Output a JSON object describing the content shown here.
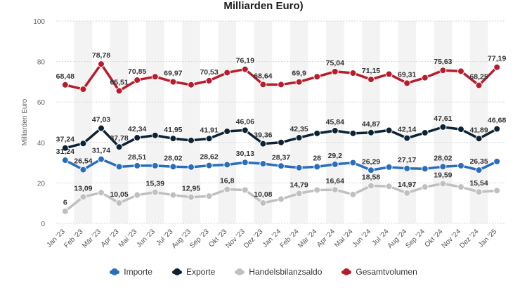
{
  "title": "Milliarden Euro)",
  "chart_data": {
    "type": "line",
    "ylabel": "Milliarden Euro",
    "ylim": [
      0,
      100
    ],
    "yticks": [
      0,
      20,
      40,
      60,
      80,
      100
    ],
    "grid": true,
    "legend_position": "bottom",
    "categories": [
      "Jan '23",
      "Feb '23",
      "Mär '23",
      "Apr '23",
      "Mai '23",
      "Jun '23",
      "Jul '23",
      "Aug '23",
      "Sep '23",
      "Okt '23",
      "Nov '23",
      "Dez '23",
      "Jan '24",
      "Feb '24",
      "Mär '24",
      "Apr '24",
      "Mai '24",
      "Jun '24",
      "Jul '24",
      "Aug '24",
      "Sep '24",
      "Okt '24",
      "Nov '24",
      "Dez '24",
      "Jan '25"
    ],
    "series": [
      {
        "name": "Importe",
        "color": "#2a6ebb",
        "values": [
          31.24,
          26.54,
          31.74,
          28.0,
          28.51,
          28.5,
          28.02,
          27.8,
          28.62,
          29.0,
          30.13,
          29.5,
          28.37,
          27.5,
          28.0,
          29.2,
          30.0,
          26.29,
          27.8,
          27.17,
          27.0,
          28.02,
          28.5,
          26.35,
          30.6
        ],
        "labels": {
          "0": "31,24",
          "1": "26,54",
          "2": "31,74",
          "4": "28,51",
          "6": "28,02",
          "8": "28,62",
          "10": "30,13",
          "12": "28,37",
          "14": "28",
          "15": "29,2",
          "17": "26,29",
          "19": "27,17",
          "21": "28,02",
          "23": "26,35"
        }
      },
      {
        "name": "Exporte",
        "color": "#0d2233",
        "values": [
          37.24,
          39.5,
          47.03,
          37.78,
          42.34,
          43.5,
          41.95,
          41.0,
          41.91,
          45.5,
          46.06,
          39.36,
          40.0,
          42.35,
          44.5,
          45.84,
          44.5,
          44.87,
          46.0,
          42.14,
          44.8,
          47.61,
          46.5,
          41.89,
          46.68
        ],
        "labels": {
          "0": "37,24",
          "2": "47,03",
          "3": "37,78",
          "4": "42,34",
          "6": "41,95",
          "8": "41,91",
          "10": "46,06",
          "11": "39,36",
          "13": "42,35",
          "15": "45,84",
          "17": "44,87",
          "19": "42,14",
          "21": "47,61",
          "23": "41,89",
          "24": "46,68"
        }
      },
      {
        "name": "Handelsbilanzsaldo",
        "color": "#c0c0c0",
        "values": [
          6.0,
          13.09,
          15.2,
          10.05,
          14.0,
          15.39,
          14.0,
          12.95,
          13.5,
          16.8,
          16.5,
          10.08,
          12.0,
          14.79,
          16.5,
          16.64,
          14.3,
          18.58,
          18.3,
          14.97,
          18.0,
          19.59,
          18.0,
          15.54,
          16.2
        ],
        "labels": {
          "0": "6",
          "1": "13,09",
          "3": "10,05",
          "5": "15,39",
          "7": "12,95",
          "9": "16,8",
          "11": "10,08",
          "13": "14,79",
          "15": "16,64",
          "17": "18,58",
          "19": "14,97",
          "21": "19,59",
          "23": "15,54"
        }
      },
      {
        "name": "Gesamtvolumen",
        "color": "#b71c2c",
        "values": [
          68.48,
          66.3,
          78.78,
          65.51,
          70.85,
          72.5,
          69.97,
          68.5,
          70.53,
          74.5,
          76.19,
          68.64,
          68.6,
          69.9,
          72.5,
          75.04,
          74.3,
          71.15,
          73.8,
          69.31,
          72.0,
          75.63,
          75.2,
          68.25,
          77.19
        ],
        "labels": {
          "0": "68,48",
          "2": "78,78",
          "3": "65,51",
          "4": "70,85",
          "6": "69,97",
          "8": "70,53",
          "10": "76,19",
          "11": "68,64",
          "13": "69,9",
          "15": "75,04",
          "17": "71,15",
          "19": "69,31",
          "21": "75,63",
          "23": "68,25",
          "24": "77,19"
        }
      }
    ]
  }
}
